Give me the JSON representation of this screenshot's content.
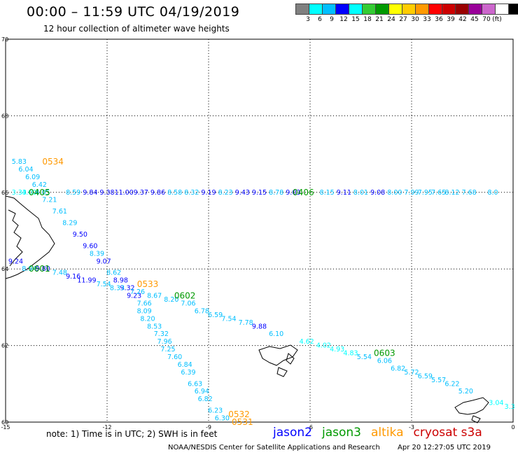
{
  "header": {
    "title": "00:00 – 11:59 UTC 04/19/2019",
    "subtitle": "12 hour collection of altimeter wave heights"
  },
  "colorbar": {
    "unit": "(ft)",
    "colors": [
      "#808080",
      "#00ffff",
      "#00bfff",
      "#0000ff",
      "#00ffff",
      "#33cc33",
      "#009900",
      "#ffff00",
      "#ffcc00",
      "#ff9900",
      "#ff0000",
      "#cc0000",
      "#990000",
      "#990099",
      "#cc66cc",
      "#ffffff",
      "#000000"
    ],
    "labels": [
      "3",
      "6",
      "9",
      "12",
      "15",
      "18",
      "21",
      "24",
      "27",
      "30",
      "33",
      "36",
      "39",
      "42",
      "45",
      "70"
    ]
  },
  "axes": {
    "x_ticks": [
      "-15",
      "-12",
      "-9",
      "-6",
      "-3",
      "0"
    ],
    "y_ticks": [
      "70",
      "68",
      "66",
      "64",
      "62",
      "60"
    ]
  },
  "footer": {
    "note": "note: 1) Time is in UTC; 2) SWH is in feet",
    "credit": "NOAA/NESDIS Center for Satellite Applications and Research",
    "date": "Apr 20 12:27:05 UTC 2019"
  },
  "legend": [
    {
      "name": "jason2",
      "color": "#0000ff"
    },
    {
      "name": "jason3",
      "color": "#009900"
    },
    {
      "name": "altika",
      "color": "#ff9900"
    },
    {
      "name": "cryosat s3a",
      "color": "#cc0000"
    }
  ],
  "chart_data": {
    "type": "scatter",
    "xlim": [
      -15,
      0
    ],
    "ylim": [
      60,
      70
    ],
    "grid": true,
    "time_labels": [
      {
        "text": "0534",
        "color": "#ff9900",
        "x": -13.6,
        "y": 66.8
      },
      {
        "text": "0405",
        "color": "#009900",
        "x": -14.0,
        "y": 66.0
      },
      {
        "text": "0406",
        "color": "#009900",
        "x": -6.2,
        "y": 66.0
      },
      {
        "text": "0601",
        "color": "#009900",
        "x": -14.0,
        "y": 64.0
      },
      {
        "text": "0533",
        "color": "#ff9900",
        "x": -10.8,
        "y": 63.6
      },
      {
        "text": "0602",
        "color": "#009900",
        "x": -9.7,
        "y": 63.3
      },
      {
        "text": "0603",
        "color": "#009900",
        "x": -3.8,
        "y": 61.8
      },
      {
        "text": "0532",
        "color": "#ff9900",
        "x": -8.1,
        "y": 60.2
      },
      {
        "text": "0531",
        "color": "#ff9900",
        "x": -8.0,
        "y": 60.0
      }
    ],
    "points": [
      {
        "v": "5.83",
        "c": "#00bfff",
        "x": -14.6,
        "y": 66.8
      },
      {
        "v": "6.04",
        "c": "#00bfff",
        "x": -14.4,
        "y": 66.6
      },
      {
        "v": "6.09",
        "c": "#00bfff",
        "x": -14.2,
        "y": 66.4
      },
      {
        "v": "6.42",
        "c": "#00bfff",
        "x": -14.0,
        "y": 66.2
      },
      {
        "v": "3.33",
        "c": "#00ffff",
        "x": -14.6,
        "y": 66.0
      },
      {
        "v": "4.00",
        "c": "#00ffff",
        "x": -14.3,
        "y": 66.0
      },
      {
        "v": "4.05",
        "c": "#00bfff",
        "x": -13.9,
        "y": 66.0
      },
      {
        "v": "8.59",
        "c": "#00bfff",
        "x": -13.0,
        "y": 66.0
      },
      {
        "v": "9.84",
        "c": "#0000ff",
        "x": -12.5,
        "y": 66.0
      },
      {
        "v": "9.38",
        "c": "#0000ff",
        "x": -12.0,
        "y": 66.0
      },
      {
        "v": "11.00",
        "c": "#0000ff",
        "x": -11.5,
        "y": 66.0
      },
      {
        "v": "9.37",
        "c": "#0000ff",
        "x": -11.0,
        "y": 66.0
      },
      {
        "v": "9.86",
        "c": "#0000ff",
        "x": -10.5,
        "y": 66.0
      },
      {
        "v": "8.58",
        "c": "#00bfff",
        "x": -10.0,
        "y": 66.0
      },
      {
        "v": "8.32",
        "c": "#00bfff",
        "x": -9.5,
        "y": 66.0
      },
      {
        "v": "9.19",
        "c": "#0000ff",
        "x": -9.0,
        "y": 66.0
      },
      {
        "v": "8.23",
        "c": "#00bfff",
        "x": -8.5,
        "y": 66.0
      },
      {
        "v": "9.43",
        "c": "#0000ff",
        "x": -8.0,
        "y": 66.0
      },
      {
        "v": "9.15",
        "c": "#0000ff",
        "x": -7.5,
        "y": 66.0
      },
      {
        "v": "8.78",
        "c": "#00bfff",
        "x": -7.0,
        "y": 66.0
      },
      {
        "v": "9.03",
        "c": "#0000ff",
        "x": -6.5,
        "y": 66.0
      },
      {
        "v": "8.15",
        "c": "#00bfff",
        "x": -5.5,
        "y": 66.0
      },
      {
        "v": "9.11",
        "c": "#0000ff",
        "x": -5.0,
        "y": 66.0
      },
      {
        "v": "8.01",
        "c": "#00bfff",
        "x": -4.5,
        "y": 66.0
      },
      {
        "v": "9.08",
        "c": "#0000ff",
        "x": -4.0,
        "y": 66.0
      },
      {
        "v": "8.00",
        "c": "#00bfff",
        "x": -3.5,
        "y": 66.0
      },
      {
        "v": "7.99",
        "c": "#00bfff",
        "x": -3.0,
        "y": 66.0
      },
      {
        "v": "7.95",
        "c": "#00bfff",
        "x": -2.6,
        "y": 66.0
      },
      {
        "v": "7.65",
        "c": "#00bfff",
        "x": -2.2,
        "y": 66.0
      },
      {
        "v": "8.12",
        "c": "#00bfff",
        "x": -1.8,
        "y": 66.0
      },
      {
        "v": "7.68",
        "c": "#00bfff",
        "x": -1.3,
        "y": 66.0
      },
      {
        "v": "8.0",
        "c": "#00bfff",
        "x": -0.6,
        "y": 66.0
      },
      {
        "v": "7.21",
        "c": "#00bfff",
        "x": -13.7,
        "y": 65.8
      },
      {
        "v": "7.61",
        "c": "#00bfff",
        "x": -13.4,
        "y": 65.5
      },
      {
        "v": "8.29",
        "c": "#00bfff",
        "x": -13.1,
        "y": 65.2
      },
      {
        "v": "9.50",
        "c": "#0000ff",
        "x": -12.8,
        "y": 64.9
      },
      {
        "v": "9.60",
        "c": "#0000ff",
        "x": -12.5,
        "y": 64.6
      },
      {
        "v": "8.39",
        "c": "#00bfff",
        "x": -12.3,
        "y": 64.4
      },
      {
        "v": "9.07",
        "c": "#0000ff",
        "x": -12.1,
        "y": 64.2
      },
      {
        "v": "8.62",
        "c": "#00bfff",
        "x": -11.8,
        "y": 63.9
      },
      {
        "v": "8.98",
        "c": "#0000ff",
        "x": -11.6,
        "y": 63.7
      },
      {
        "v": "9.32",
        "c": "#0000ff",
        "x": -11.4,
        "y": 63.5
      },
      {
        "v": "9.23",
        "c": "#0000ff",
        "x": -11.2,
        "y": 63.3
      },
      {
        "v": "7.66",
        "c": "#00bfff",
        "x": -10.9,
        "y": 63.1
      },
      {
        "v": "8.09",
        "c": "#00bfff",
        "x": -10.9,
        "y": 62.9
      },
      {
        "v": "8.20",
        "c": "#00bfff",
        "x": -10.8,
        "y": 62.7
      },
      {
        "v": "8.53",
        "c": "#00bfff",
        "x": -10.6,
        "y": 62.5
      },
      {
        "v": "7.32",
        "c": "#00bfff",
        "x": -10.4,
        "y": 62.3
      },
      {
        "v": "7.96",
        "c": "#00bfff",
        "x": -10.3,
        "y": 62.1
      },
      {
        "v": "7.25",
        "c": "#00bfff",
        "x": -10.2,
        "y": 61.9
      },
      {
        "v": "7.60",
        "c": "#00bfff",
        "x": -10.0,
        "y": 61.7
      },
      {
        "v": "6.84",
        "c": "#00bfff",
        "x": -9.7,
        "y": 61.5
      },
      {
        "v": "6.39",
        "c": "#00bfff",
        "x": -9.6,
        "y": 61.3
      },
      {
        "v": "6.63",
        "c": "#00bfff",
        "x": -9.4,
        "y": 61.0
      },
      {
        "v": "6.94",
        "c": "#00bfff",
        "x": -9.2,
        "y": 60.8
      },
      {
        "v": "6.82",
        "c": "#00bfff",
        "x": -9.1,
        "y": 60.6
      },
      {
        "v": "6.23",
        "c": "#00bfff",
        "x": -8.8,
        "y": 60.3
      },
      {
        "v": "6.30",
        "c": "#00bfff",
        "x": -8.6,
        "y": 60.1
      },
      {
        "v": "9.24",
        "c": "#0000ff",
        "x": -14.7,
        "y": 64.2
      },
      {
        "v": "8.94",
        "c": "#00bfff",
        "x": -14.3,
        "y": 64.0
      },
      {
        "v": "9.80",
        "c": "#0000ff",
        "x": -13.9,
        "y": 64.0
      },
      {
        "v": "7.48",
        "c": "#00bfff",
        "x": -13.4,
        "y": 63.9
      },
      {
        "v": "9.16",
        "c": "#0000ff",
        "x": -13.0,
        "y": 63.8
      },
      {
        "v": "11.99",
        "c": "#0000ff",
        "x": -12.6,
        "y": 63.7
      },
      {
        "v": "7.54",
        "c": "#00bfff",
        "x": -12.1,
        "y": 63.6
      },
      {
        "v": "8.33",
        "c": "#00bfff",
        "x": -11.7,
        "y": 63.5
      },
      {
        "v": "7.26",
        "c": "#00bfff",
        "x": -11.1,
        "y": 63.4
      },
      {
        "v": "8.67",
        "c": "#00bfff",
        "x": -10.6,
        "y": 63.3
      },
      {
        "v": "8.20",
        "c": "#00bfff",
        "x": -10.1,
        "y": 63.2
      },
      {
        "v": "7.06",
        "c": "#00bfff",
        "x": -9.6,
        "y": 63.1
      },
      {
        "v": "6.78",
        "c": "#00bfff",
        "x": -9.2,
        "y": 62.9
      },
      {
        "v": "6.59",
        "c": "#00bfff",
        "x": -8.8,
        "y": 62.8
      },
      {
        "v": "7.54",
        "c": "#00bfff",
        "x": -8.4,
        "y": 62.7
      },
      {
        "v": "7.78",
        "c": "#00bfff",
        "x": -7.9,
        "y": 62.6
      },
      {
        "v": "9.88",
        "c": "#0000ff",
        "x": -7.5,
        "y": 62.5
      },
      {
        "v": "6.10",
        "c": "#00bfff",
        "x": -7.0,
        "y": 62.3
      },
      {
        "v": "4.62",
        "c": "#00ffff",
        "x": -6.1,
        "y": 62.1
      },
      {
        "v": "4.02",
        "c": "#00ffff",
        "x": -5.6,
        "y": 62.0
      },
      {
        "v": "4.93",
        "c": "#00ffff",
        "x": -5.2,
        "y": 61.9
      },
      {
        "v": "4.83",
        "c": "#00ffff",
        "x": -4.8,
        "y": 61.8
      },
      {
        "v": "5.54",
        "c": "#00bfff",
        "x": -4.4,
        "y": 61.7
      },
      {
        "v": "6.06",
        "c": "#00bfff",
        "x": -3.8,
        "y": 61.6
      },
      {
        "v": "6.82",
        "c": "#00bfff",
        "x": -3.4,
        "y": 61.4
      },
      {
        "v": "5.72",
        "c": "#00bfff",
        "x": -3.0,
        "y": 61.3
      },
      {
        "v": "6.59",
        "c": "#00bfff",
        "x": -2.6,
        "y": 61.2
      },
      {
        "v": "5.57",
        "c": "#00bfff",
        "x": -2.2,
        "y": 61.1
      },
      {
        "v": "6.22",
        "c": "#00bfff",
        "x": -1.8,
        "y": 61.0
      },
      {
        "v": "5.20",
        "c": "#00bfff",
        "x": -1.4,
        "y": 60.8
      },
      {
        "v": "3.04",
        "c": "#00ffff",
        "x": -0.5,
        "y": 60.5
      },
      {
        "v": "3.3",
        "c": "#00ffff",
        "x": -0.1,
        "y": 60.4
      }
    ]
  }
}
